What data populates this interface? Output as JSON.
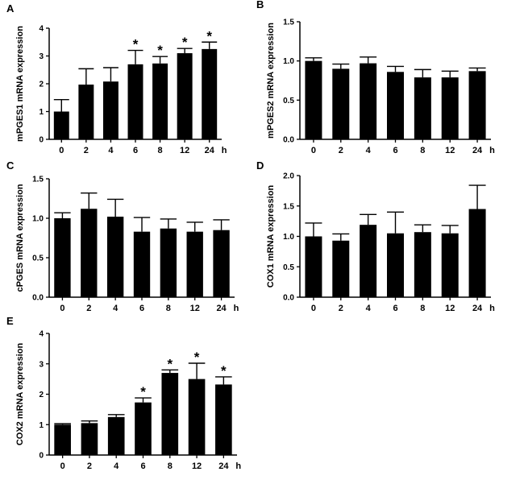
{
  "x_unit": "h",
  "chart_data": [
    {
      "panel": "A",
      "type": "bar",
      "ylabel": "mPGES1 mRNA expression",
      "categories": [
        "0",
        "2",
        "4",
        "6",
        "8",
        "12",
        "24"
      ],
      "values": [
        1.0,
        1.97,
        2.08,
        2.7,
        2.73,
        3.1,
        3.25
      ],
      "errors": [
        0.43,
        0.57,
        0.5,
        0.5,
        0.25,
        0.17,
        0.25
      ],
      "significant": [
        "",
        "",
        "",
        "*",
        "*",
        "*",
        "*"
      ],
      "yticks": [
        "0",
        "1",
        "2",
        "3",
        "4"
      ],
      "ylim": [
        0,
        4
      ],
      "grid": false
    },
    {
      "panel": "B",
      "type": "bar",
      "ylabel": "mPGES2 mRNA expression",
      "categories": [
        "0",
        "2",
        "4",
        "6",
        "8",
        "12",
        "24"
      ],
      "values": [
        1.0,
        0.9,
        0.97,
        0.86,
        0.79,
        0.79,
        0.87
      ],
      "errors": [
        0.04,
        0.06,
        0.08,
        0.07,
        0.1,
        0.08,
        0.04
      ],
      "significant": [
        "",
        "",
        "",
        "",
        "",
        "",
        ""
      ],
      "yticks": [
        "0.0",
        "0.5",
        "1.0",
        "1.5"
      ],
      "ylim": [
        0,
        1.5
      ],
      "grid": false
    },
    {
      "panel": "C",
      "type": "bar",
      "ylabel": "cPGES mRNA expression",
      "categories": [
        "0",
        "2",
        "4",
        "6",
        "8",
        "12",
        "24"
      ],
      "values": [
        1.0,
        1.12,
        1.02,
        0.83,
        0.87,
        0.83,
        0.85
      ],
      "errors": [
        0.07,
        0.2,
        0.22,
        0.18,
        0.12,
        0.12,
        0.13
      ],
      "significant": [
        "",
        "",
        "",
        "",
        "",
        "",
        ""
      ],
      "yticks": [
        "0.0",
        "0.5",
        "1.0",
        "1.5"
      ],
      "ylim": [
        0,
        1.5
      ],
      "grid": false
    },
    {
      "panel": "D",
      "type": "bar",
      "ylabel": "COX1 mRNA expression",
      "categories": [
        "0",
        "2",
        "4",
        "6",
        "8",
        "12",
        "24"
      ],
      "values": [
        1.0,
        0.93,
        1.19,
        1.05,
        1.07,
        1.05,
        1.45
      ],
      "errors": [
        0.22,
        0.11,
        0.17,
        0.35,
        0.12,
        0.13,
        0.39
      ],
      "significant": [
        "",
        "",
        "",
        "",
        "",
        "",
        ""
      ],
      "yticks": [
        "0.0",
        "0.5",
        "1.0",
        "1.5",
        "2.0"
      ],
      "ylim": [
        0,
        2
      ],
      "grid": false
    },
    {
      "panel": "E",
      "type": "bar",
      "ylabel": "COX2 mRNA expression",
      "categories": [
        "0",
        "2",
        "4",
        "6",
        "8",
        "12",
        "24"
      ],
      "values": [
        1.0,
        1.05,
        1.25,
        1.73,
        2.7,
        2.5,
        2.32
      ],
      "errors": [
        0.03,
        0.07,
        0.08,
        0.15,
        0.1,
        0.52,
        0.25
      ],
      "significant": [
        "",
        "",
        "",
        "*",
        "*",
        "*",
        "*"
      ],
      "yticks": [
        "0",
        "1",
        "2",
        "3",
        "4"
      ],
      "ylim": [
        0,
        4
      ],
      "grid": false
    }
  ]
}
